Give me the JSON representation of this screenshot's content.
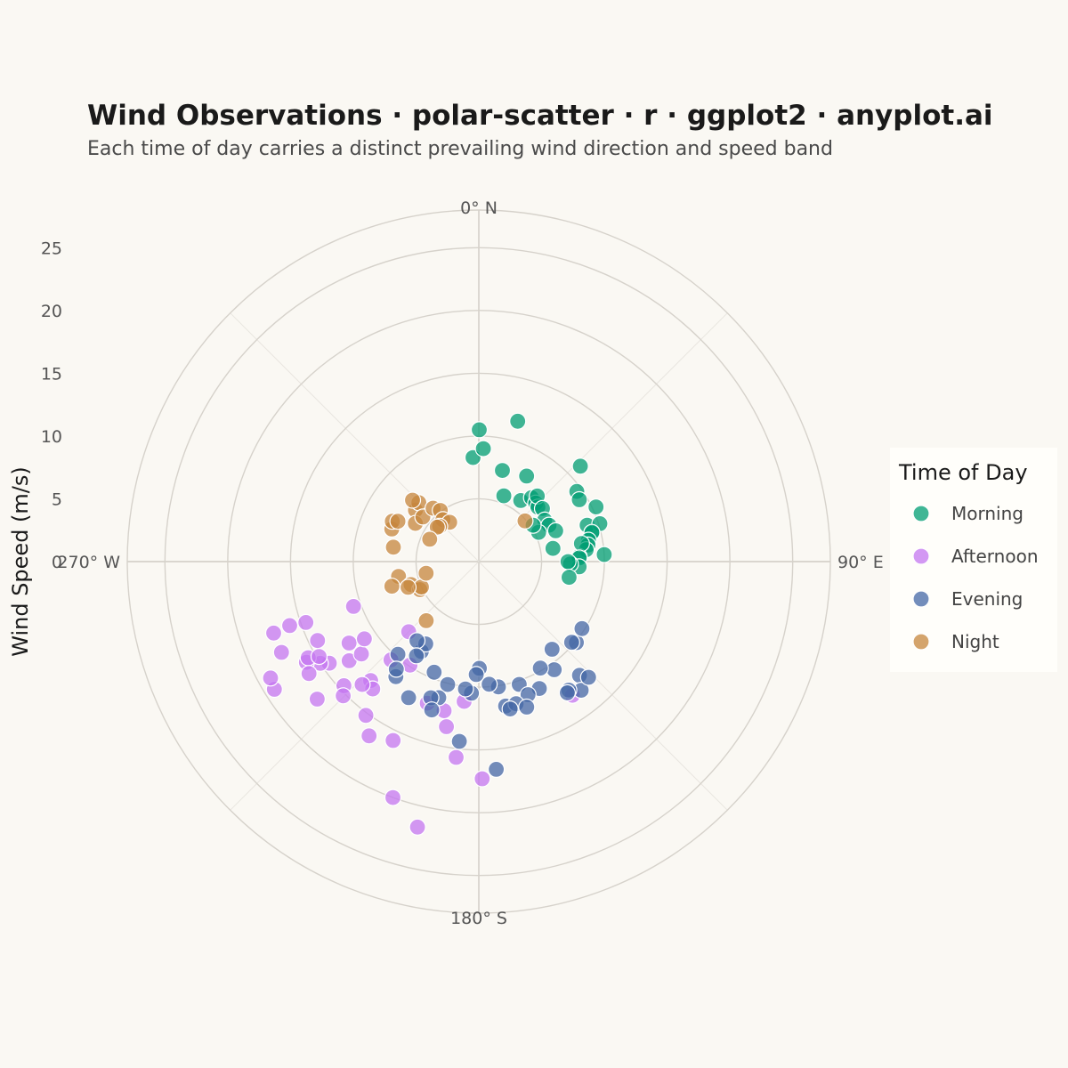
{
  "chart_data": {
    "type": "scatter",
    "coordinate_system": "polar",
    "title": "Wind Observations · polar-scatter · r · ggplot2 · anyplot.ai",
    "subtitle": "Each time of day carries a distinct prevailing wind direction and speed band",
    "ylabel": "Wind Speed (m/s)",
    "r_range": [
      0,
      28
    ],
    "r_ticks": [
      0,
      5,
      10,
      15,
      20,
      25
    ],
    "theta_direction": "clockwise",
    "theta_zero": "north",
    "angle_labels": [
      {
        "deg": 0,
        "label": "0° N"
      },
      {
        "deg": 90,
        "label": "90° E"
      },
      {
        "deg": 180,
        "label": "180° S"
      },
      {
        "deg": 270,
        "label": "270° W"
      }
    ],
    "grid": true,
    "legend_title": "Time of Day",
    "legend_position": "right",
    "series": [
      {
        "name": "Morning",
        "color": "#009E73",
        "points": [
          [
            0.2,
            10.5
          ],
          [
            -3.2,
            8.3
          ],
          [
            2.3,
            9.0
          ],
          [
            15.5,
            11.6
          ],
          [
            14.5,
            7.5
          ],
          [
            20.8,
            5.6
          ],
          [
            29.2,
            7.8
          ],
          [
            34.5,
            5.9
          ],
          [
            39.5,
            6.6
          ],
          [
            44.2,
            6.5
          ],
          [
            47.3,
            6.4
          ],
          [
            41.7,
            7.0
          ],
          [
            50.2,
            6.6
          ],
          [
            57.8,
            6.2
          ],
          [
            62.6,
            6.3
          ],
          [
            64.0,
            5.3
          ],
          [
            46.8,
            11.1
          ],
          [
            54.4,
            9.6
          ],
          [
            58.4,
            9.4
          ],
          [
            65.0,
            10.3
          ],
          [
            71.4,
            9.1
          ],
          [
            72.6,
            10.1
          ],
          [
            75.9,
            9.3
          ],
          [
            75.5,
            9.3
          ],
          [
            56.2,
            5.2
          ],
          [
            68.2,
            6.6
          ],
          [
            79.0,
            8.9
          ],
          [
            81.4,
            8.8
          ],
          [
            83.7,
            8.6
          ],
          [
            87.1,
            8.0
          ],
          [
            86.8,
            10.0
          ],
          [
            80.0,
            8.3
          ],
          [
            87.9,
            8.0
          ],
          [
            93.0,
            8.0
          ],
          [
            91.5,
            7.3
          ],
          [
            90.0,
            7.1
          ],
          [
            99.9,
            7.3
          ],
          [
            79.9,
            6.0
          ]
        ]
      },
      {
        "name": "Afternoon",
        "color": "#C475F0",
        "points": [
          [
            193.0,
            21.7
          ],
          [
            200.0,
            20.0
          ],
          [
            179.1,
            17.3
          ],
          [
            186.6,
            15.7
          ],
          [
            191.1,
            13.4
          ],
          [
            193.1,
            12.2
          ],
          [
            205.6,
            15.8
          ],
          [
            212.2,
            16.4
          ],
          [
            216.3,
            15.2
          ],
          [
            222.3,
            12.8
          ],
          [
            219.8,
            13.2
          ],
          [
            223.5,
            13.5
          ],
          [
            227.4,
            14.6
          ],
          [
            225.3,
            15.2
          ],
          [
            229.6,
            16.9
          ],
          [
            232.6,
            13.0
          ],
          [
            237.9,
            12.2
          ],
          [
            235.8,
            14.4
          ],
          [
            237.3,
            15.0
          ],
          [
            239.7,
            15.9
          ],
          [
            240.6,
            15.6
          ],
          [
            239.3,
            14.8
          ],
          [
            236.6,
            16.2
          ],
          [
            243.9,
            14.3
          ],
          [
            238.0,
            19.2
          ],
          [
            240.8,
            19.0
          ],
          [
            250.6,
            14.6
          ],
          [
            245.3,
            17.3
          ],
          [
            250.8,
            17.3
          ],
          [
            251.3,
            15.9
          ],
          [
            145.0,
            13.0
          ],
          [
            186.0,
            11.2
          ],
          [
            200.0,
            12.0
          ],
          [
            221.8,
            10.5
          ],
          [
            213.6,
            9.9
          ],
          [
            225.0,
            7.9
          ],
          [
            231.8,
            11.9
          ],
          [
            250.3,
            10.6
          ],
          [
            236.0,
            11.0
          ]
        ]
      },
      {
        "name": "Evening",
        "color": "#4467A6",
        "points": [
          [
            129.7,
            10.1
          ],
          [
            123.0,
            9.8
          ],
          [
            131.0,
            9.8
          ],
          [
            138.5,
            12.1
          ],
          [
            141.5,
            13.1
          ],
          [
            145.0,
            12.5
          ],
          [
            146.0,
            12.6
          ],
          [
            145.1,
            10.5
          ],
          [
            150.0,
            9.8
          ],
          [
            140.1,
            9.1
          ],
          [
            154.5,
            11.2
          ],
          [
            161.8,
            10.3
          ],
          [
            159.7,
            11.3
          ],
          [
            169.5,
            11.7
          ],
          [
            175.2,
            16.6
          ],
          [
            165.3,
            11.7
          ],
          [
            161.8,
            12.2
          ],
          [
            168.0,
            12.0
          ],
          [
            171.1,
            10.1
          ],
          [
            175.2,
            9.8
          ],
          [
            179.7,
            8.5
          ],
          [
            181.3,
            9.0
          ],
          [
            183.2,
            10.5
          ],
          [
            186.0,
            10.2
          ],
          [
            186.2,
            14.4
          ],
          [
            194.2,
            10.1
          ],
          [
            202.0,
            9.5
          ],
          [
            196.4,
            11.3
          ],
          [
            199.4,
            11.5
          ],
          [
            197.6,
            12.4
          ],
          [
            207.3,
            12.2
          ],
          [
            215.8,
            11.3
          ],
          [
            221.1,
            9.8
          ],
          [
            212.6,
            8.5
          ],
          [
            212.8,
            7.8
          ],
          [
            218.0,
            8.0
          ],
          [
            217.5,
            10.8
          ],
          [
            213.5,
            9.0
          ],
          [
            136.5,
            12.7
          ]
        ]
      },
      {
        "name": "Night",
        "color": "#C6853C",
        "points": [
          [
            279.6,
            6.9
          ],
          [
            290.5,
            7.4
          ],
          [
            295.0,
            7.6
          ],
          [
            296.5,
            7.2
          ],
          [
            309.1,
            6.5
          ],
          [
            314.5,
            6.7
          ],
          [
            312.8,
            7.2
          ],
          [
            301.0,
            5.9
          ],
          [
            308.5,
            5.7
          ],
          [
            319.4,
            5.6
          ],
          [
            323.0,
            5.1
          ],
          [
            319.4,
            4.4
          ],
          [
            323.5,
            3.9
          ],
          [
            312.1,
            4.2
          ],
          [
            309.6,
            4.3
          ],
          [
            294.4,
            4.3
          ],
          [
            259.6,
            6.5
          ],
          [
            254.2,
            7.2
          ],
          [
            251.3,
            5.7
          ],
          [
            244.6,
            5.2
          ],
          [
            246.1,
            5.0
          ],
          [
            257.5,
            4.3
          ],
          [
            250.0,
            6.0
          ],
          [
            221.7,
            6.3
          ],
          [
            48.6,
            4.9
          ]
        ]
      }
    ]
  }
}
